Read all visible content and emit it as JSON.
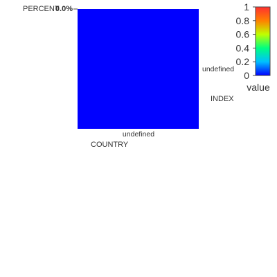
{
  "chart_data": {
    "type": "heatmap",
    "x_categories": [
      "undefined"
    ],
    "y_categories": [
      "undefined"
    ],
    "values": [
      [
        0
      ]
    ],
    "xlabel": "COUNTRY",
    "ylabel": "INDEX",
    "z_title": "PERCENT",
    "z_hover_text": "0.0%",
    "colorbar": {
      "title": "value",
      "range": [
        0,
        1
      ],
      "ticks": [
        "0",
        "0.2",
        "0.4",
        "0.6",
        "0.8",
        "1"
      ]
    },
    "colorscale": [
      "#0000ff",
      "#00c0ff",
      "#00ff80",
      "#c0ff00",
      "#ff8000",
      "#ff3030"
    ],
    "grid": false
  }
}
